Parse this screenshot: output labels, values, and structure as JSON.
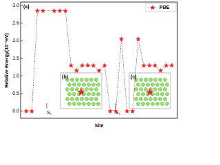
{
  "chart_data": {
    "type": "scatter",
    "ylabel": "Relative Energy(10⁻²eV)",
    "xlabel": "Site",
    "panel_label": "(a)",
    "annotations": [
      "(b)",
      "(c)",
      "S₁",
      "S₂"
    ],
    "series": [
      {
        "name": "PBE",
        "color": "#e8262b",
        "x": [
          1,
          2,
          3,
          4,
          6,
          7,
          8,
          9,
          10,
          11,
          12,
          13,
          14,
          15,
          16,
          17,
          18,
          19,
          20,
          21,
          22,
          23,
          24,
          25,
          26,
          27
        ],
        "values": [
          0,
          0,
          2.85,
          2.85,
          2.85,
          2.85,
          2.85,
          1.3,
          1.15,
          1.3,
          1.3,
          1.3,
          1.15,
          1.3,
          0,
          0,
          2.05,
          0,
          0,
          2.05,
          1.3,
          1.3,
          1.3,
          1.15,
          1.3,
          1.3
        ]
      }
    ],
    "xlim": [
      0,
      28
    ],
    "ylim": [
      -0.2,
      3.1
    ],
    "yticks": [
      {
        "value": 0,
        "label": "0.0"
      },
      0.5,
      {
        "value": 1,
        "label": "1.0"
      },
      1.5,
      {
        "value": 2,
        "label": "2.0"
      },
      2.5,
      {
        "value": 3,
        "label": "3.0"
      }
    ],
    "legend": "upper right"
  }
}
